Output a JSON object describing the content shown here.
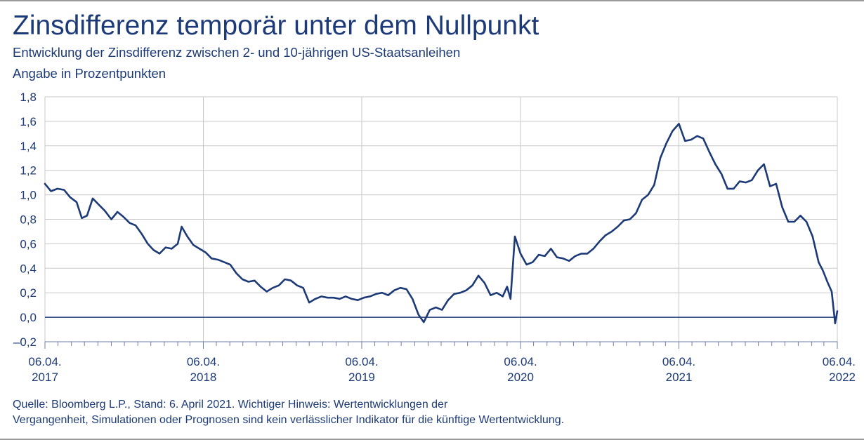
{
  "header": {
    "title": "Zinsdifferenz temporär unter dem Nullpunkt",
    "subtitle": "Entwicklung der Zinsdifferenz zwischen 2- und 10-jährigen US-Staatsanleihen",
    "unit": "Angabe in Prozentpunkten"
  },
  "footnote": {
    "line1": "Quelle: Bloomberg L.P., Stand: 6. April 2021. Wichtiger Hinweis: Wertentwicklungen der",
    "line2": "Vergangenheit, Simulationen oder Prognosen sind kein verlässlicher Indikator für die künftige Wertentwicklung."
  },
  "colors": {
    "line": "#1d3a78",
    "grid": "#c8c8c8",
    "text": "#1d3a78",
    "frame": "#9a9a9a"
  },
  "chart_data": {
    "type": "line",
    "title": "Zinsdifferenz temporär unter dem Nullpunkt",
    "ylabel": "Angabe in Prozentpunkten",
    "ylim": [
      -0.2,
      1.8
    ],
    "xlim": [
      "2017-04-06",
      "2022-04-06"
    ],
    "yticks": [
      -0.2,
      0.0,
      0.2,
      0.4,
      0.6,
      0.8,
      1.0,
      1.2,
      1.4,
      1.6,
      1.8
    ],
    "ytick_labels": [
      "–0,2",
      "0,0",
      "0,2",
      "0,4",
      "0,6",
      "0,8",
      "1,0",
      "1,2",
      "1,4",
      "1,6",
      "1,8"
    ],
    "xticks": [
      {
        "date": "2017-04-06",
        "line1": "06.04.",
        "line2": "2017"
      },
      {
        "date": "2018-04-06",
        "line1": "06.04.",
        "line2": "2018"
      },
      {
        "date": "2019-04-06",
        "line1": "06.04.",
        "line2": "2019"
      },
      {
        "date": "2020-04-06",
        "line1": "06.04.",
        "line2": "2020"
      },
      {
        "date": "2021-04-06",
        "line1": "06.04.",
        "line2": "2021"
      },
      {
        "date": "2022-04-06",
        "line1": "06.04.",
        "line2": "2022"
      }
    ],
    "grid": true,
    "zero_line": true,
    "series": [
      {
        "points": [
          [
            "2017-04-06",
            1.09
          ],
          [
            "2017-04-20",
            1.03
          ],
          [
            "2017-05-05",
            1.05
          ],
          [
            "2017-05-20",
            1.04
          ],
          [
            "2017-06-03",
            0.98
          ],
          [
            "2017-06-18",
            0.94
          ],
          [
            "2017-06-30",
            0.81
          ],
          [
            "2017-07-12",
            0.83
          ],
          [
            "2017-07-25",
            0.97
          ],
          [
            "2017-08-08",
            0.92
          ],
          [
            "2017-08-22",
            0.87
          ],
          [
            "2017-09-06",
            0.8
          ],
          [
            "2017-09-20",
            0.86
          ],
          [
            "2017-10-04",
            0.82
          ],
          [
            "2017-10-18",
            0.77
          ],
          [
            "2017-11-01",
            0.75
          ],
          [
            "2017-11-15",
            0.68
          ],
          [
            "2017-11-29",
            0.6
          ],
          [
            "2017-12-12",
            0.55
          ],
          [
            "2017-12-26",
            0.52
          ],
          [
            "2018-01-09",
            0.57
          ],
          [
            "2018-01-23",
            0.56
          ],
          [
            "2018-02-06",
            0.6
          ],
          [
            "2018-02-15",
            0.74
          ],
          [
            "2018-02-28",
            0.66
          ],
          [
            "2018-03-14",
            0.59
          ],
          [
            "2018-03-28",
            0.56
          ],
          [
            "2018-04-11",
            0.53
          ],
          [
            "2018-04-25",
            0.48
          ],
          [
            "2018-05-10",
            0.47
          ],
          [
            "2018-05-24",
            0.45
          ],
          [
            "2018-06-07",
            0.43
          ],
          [
            "2018-06-21",
            0.36
          ],
          [
            "2018-07-05",
            0.31
          ],
          [
            "2018-07-19",
            0.29
          ],
          [
            "2018-08-02",
            0.3
          ],
          [
            "2018-08-16",
            0.25
          ],
          [
            "2018-08-30",
            0.21
          ],
          [
            "2018-09-13",
            0.24
          ],
          [
            "2018-09-27",
            0.26
          ],
          [
            "2018-10-11",
            0.31
          ],
          [
            "2018-10-25",
            0.3
          ],
          [
            "2018-11-08",
            0.26
          ],
          [
            "2018-11-22",
            0.24
          ],
          [
            "2018-12-06",
            0.12
          ],
          [
            "2018-12-20",
            0.15
          ],
          [
            "2019-01-03",
            0.17
          ],
          [
            "2019-01-17",
            0.16
          ],
          [
            "2019-01-31",
            0.16
          ],
          [
            "2019-02-14",
            0.15
          ],
          [
            "2019-02-28",
            0.17
          ],
          [
            "2019-03-14",
            0.15
          ],
          [
            "2019-03-28",
            0.14
          ],
          [
            "2019-04-11",
            0.16
          ],
          [
            "2019-04-25",
            0.17
          ],
          [
            "2019-05-09",
            0.19
          ],
          [
            "2019-05-23",
            0.2
          ],
          [
            "2019-06-06",
            0.18
          ],
          [
            "2019-06-20",
            0.22
          ],
          [
            "2019-07-04",
            0.24
          ],
          [
            "2019-07-18",
            0.23
          ],
          [
            "2019-08-01",
            0.15
          ],
          [
            "2019-08-15",
            0.02
          ],
          [
            "2019-08-27",
            -0.04
          ],
          [
            "2019-09-10",
            0.06
          ],
          [
            "2019-09-24",
            0.08
          ],
          [
            "2019-10-08",
            0.06
          ],
          [
            "2019-10-22",
            0.14
          ],
          [
            "2019-11-05",
            0.19
          ],
          [
            "2019-11-19",
            0.2
          ],
          [
            "2019-12-03",
            0.22
          ],
          [
            "2019-12-17",
            0.26
          ],
          [
            "2019-12-31",
            0.34
          ],
          [
            "2020-01-14",
            0.28
          ],
          [
            "2020-01-28",
            0.18
          ],
          [
            "2020-02-11",
            0.2
          ],
          [
            "2020-02-25",
            0.17
          ],
          [
            "2020-03-06",
            0.25
          ],
          [
            "2020-03-14",
            0.15
          ],
          [
            "2020-03-24",
            0.66
          ],
          [
            "2020-04-06",
            0.52
          ],
          [
            "2020-04-20",
            0.43
          ],
          [
            "2020-05-04",
            0.45
          ],
          [
            "2020-05-18",
            0.51
          ],
          [
            "2020-06-01",
            0.5
          ],
          [
            "2020-06-15",
            0.56
          ],
          [
            "2020-06-29",
            0.49
          ],
          [
            "2020-07-13",
            0.48
          ],
          [
            "2020-07-27",
            0.46
          ],
          [
            "2020-08-10",
            0.5
          ],
          [
            "2020-08-24",
            0.52
          ],
          [
            "2020-09-07",
            0.52
          ],
          [
            "2020-09-21",
            0.56
          ],
          [
            "2020-10-05",
            0.62
          ],
          [
            "2020-10-19",
            0.67
          ],
          [
            "2020-11-02",
            0.7
          ],
          [
            "2020-11-16",
            0.74
          ],
          [
            "2020-11-30",
            0.79
          ],
          [
            "2020-12-14",
            0.8
          ],
          [
            "2020-12-28",
            0.85
          ],
          [
            "2021-01-11",
            0.96
          ],
          [
            "2021-01-25",
            1.0
          ],
          [
            "2021-02-08",
            1.08
          ],
          [
            "2021-02-22",
            1.3
          ],
          [
            "2021-03-08",
            1.42
          ],
          [
            "2021-03-22",
            1.52
          ],
          [
            "2021-04-06",
            1.58
          ],
          [
            "2021-04-20",
            1.44
          ],
          [
            "2021-05-04",
            1.45
          ],
          [
            "2021-05-18",
            1.48
          ],
          [
            "2021-06-01",
            1.46
          ],
          [
            "2021-06-15",
            1.35
          ],
          [
            "2021-06-29",
            1.25
          ],
          [
            "2021-07-13",
            1.17
          ],
          [
            "2021-07-27",
            1.05
          ],
          [
            "2021-08-10",
            1.05
          ],
          [
            "2021-08-24",
            1.11
          ],
          [
            "2021-09-07",
            1.1
          ],
          [
            "2021-09-21",
            1.12
          ],
          [
            "2021-10-05",
            1.2
          ],
          [
            "2021-10-19",
            1.25
          ],
          [
            "2021-11-02",
            1.07
          ],
          [
            "2021-11-16",
            1.09
          ],
          [
            "2021-11-30",
            0.9
          ],
          [
            "2021-12-14",
            0.78
          ],
          [
            "2021-12-28",
            0.78
          ],
          [
            "2022-01-11",
            0.83
          ],
          [
            "2022-01-25",
            0.78
          ],
          [
            "2022-02-08",
            0.66
          ],
          [
            "2022-02-22",
            0.45
          ],
          [
            "2022-03-04",
            0.38
          ],
          [
            "2022-03-14",
            0.29
          ],
          [
            "2022-03-24",
            0.21
          ],
          [
            "2022-04-01",
            -0.05
          ],
          [
            "2022-04-06",
            0.05
          ]
        ]
      }
    ]
  }
}
